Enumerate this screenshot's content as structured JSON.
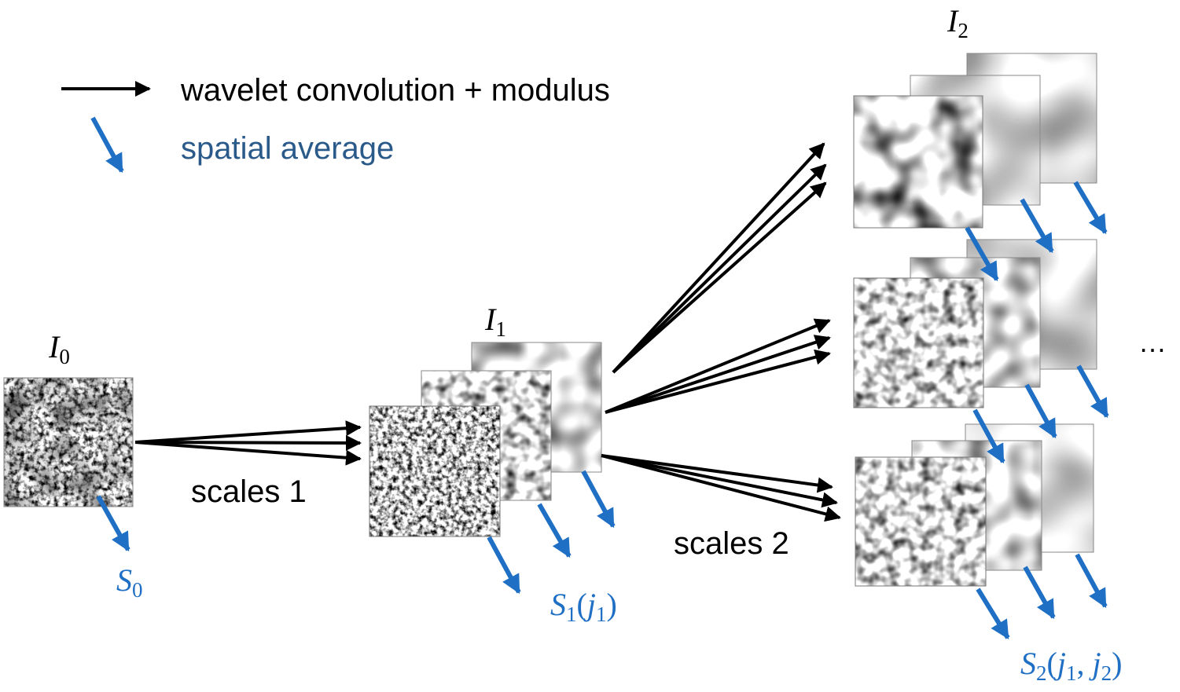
{
  "legend": {
    "black_arrow_label": "wavelet convolution + modulus",
    "blue_arrow_label": "spatial average"
  },
  "labels": {
    "I0": {
      "base": "I",
      "sub": "0"
    },
    "I1": {
      "base": "I",
      "sub": "1"
    },
    "I2": {
      "base": "I",
      "sub": "2"
    },
    "S0": {
      "base": "S",
      "sub": "0"
    },
    "S1": {
      "base": "S",
      "sub": "1",
      "open": "(",
      "arg": "j",
      "arg_sub": "1",
      "close": ")"
    },
    "S2": {
      "base": "S",
      "sub": "2",
      "open": "(",
      "arg1": "j",
      "arg1_sub": "1",
      "sep": ", ",
      "arg2": "j",
      "arg2_sub": "2",
      "close": ")"
    },
    "scales1": "scales 1",
    "scales2": "scales 2",
    "ellipsis": "…"
  },
  "colors": {
    "black_arrow": "#000000",
    "blue_arrow": "#1F6FC5",
    "legend_blue_text": "#2A5A8A"
  }
}
